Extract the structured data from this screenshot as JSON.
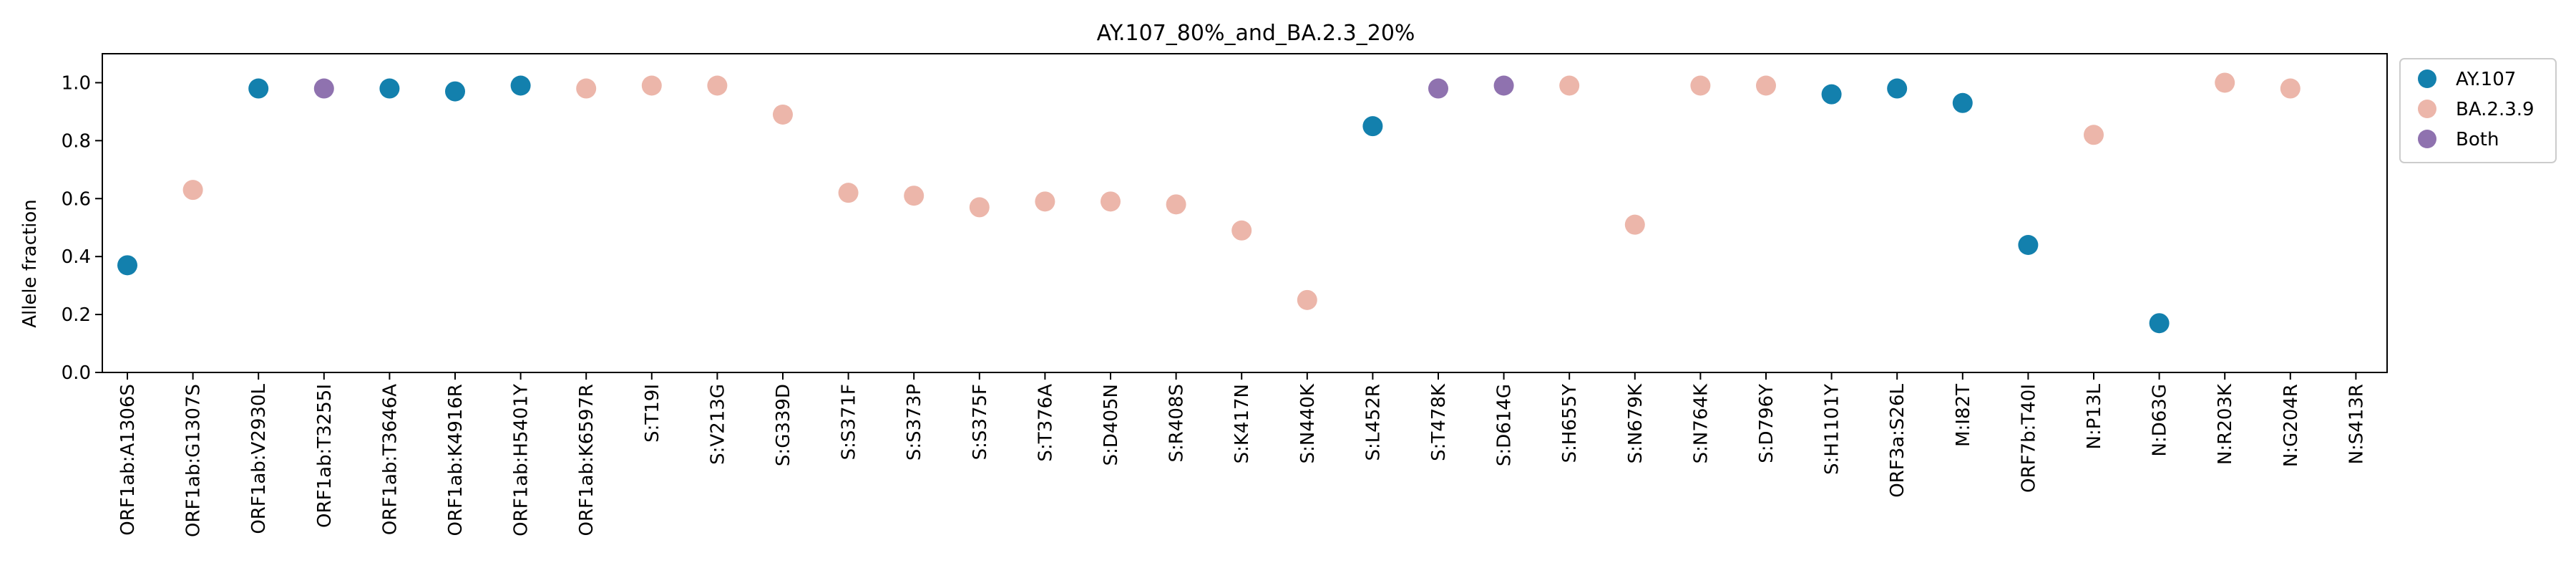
{
  "chart_data": {
    "type": "scatter",
    "title": "AY.107_80%_and_BA.2.3_20%",
    "xlabel": "",
    "ylabel": "Allele fraction",
    "ylim": [
      0.0,
      1.1
    ],
    "yticks": [
      0.0,
      0.2,
      0.4,
      0.6,
      0.8,
      1.0
    ],
    "ytick_labels": [
      "0.0",
      "0.2",
      "0.4",
      "0.6",
      "0.8",
      "1.0"
    ],
    "grid": false,
    "legend_position": "upper right, outside plot",
    "colors": {
      "AY.107": "#1380AD",
      "BA.2.3.9": "#ECB6AA",
      "Both": "#8F72AF"
    },
    "categories": [
      "ORF1ab:A1306S",
      "ORF1ab:G1307S",
      "ORF1ab:V2930L",
      "ORF1ab:T3255I",
      "ORF1ab:T3646A",
      "ORF1ab:K4916R",
      "ORF1ab:H5401Y",
      "ORF1ab:K6597R",
      "S:T19I",
      "S:V213G",
      "S:G339D",
      "S:S371F",
      "S:S373P",
      "S:S375F",
      "S:T376A",
      "S:D405N",
      "S:R408S",
      "S:K417N",
      "S:N440K",
      "S:L452R",
      "S:T478K",
      "S:D614G",
      "S:H655Y",
      "S:N679K",
      "S:N764K",
      "S:D796Y",
      "S:H1101Y",
      "ORF3a:S26L",
      "M:I82T",
      "ORF7b:T40I",
      "N:P13L",
      "N:D63G",
      "N:R203K",
      "N:G204R",
      "N:S413R"
    ],
    "series": [
      {
        "name": "AY.107",
        "points": [
          {
            "x": "ORF1ab:A1306S",
            "y": 0.37
          },
          {
            "x": "ORF1ab:V2930L",
            "y": 0.98
          },
          {
            "x": "ORF1ab:T3646A",
            "y": 0.98
          },
          {
            "x": "ORF1ab:K4916R",
            "y": 0.97
          },
          {
            "x": "ORF1ab:H5401Y",
            "y": 0.99
          },
          {
            "x": "S:L452R",
            "y": 0.85
          },
          {
            "x": "S:H1101Y",
            "y": 0.96
          },
          {
            "x": "ORF3a:S26L",
            "y": 0.98
          },
          {
            "x": "M:I82T",
            "y": 0.93
          },
          {
            "x": "ORF7b:T40I",
            "y": 0.44
          },
          {
            "x": "N:D63G",
            "y": 0.17
          }
        ]
      },
      {
        "name": "BA.2.3.9",
        "points": [
          {
            "x": "ORF1ab:G1307S",
            "y": 0.63
          },
          {
            "x": "ORF1ab:K6597R",
            "y": 0.98
          },
          {
            "x": "S:T19I",
            "y": 0.99
          },
          {
            "x": "S:V213G",
            "y": 0.99
          },
          {
            "x": "S:G339D",
            "y": 0.89
          },
          {
            "x": "S:S371F",
            "y": 0.62
          },
          {
            "x": "S:S373P",
            "y": 0.61
          },
          {
            "x": "S:S375F",
            "y": 0.57
          },
          {
            "x": "S:T376A",
            "y": 0.59
          },
          {
            "x": "S:D405N",
            "y": 0.59
          },
          {
            "x": "S:R408S",
            "y": 0.58
          },
          {
            "x": "S:K417N",
            "y": 0.49
          },
          {
            "x": "S:N440K",
            "y": 0.25
          },
          {
            "x": "S:H655Y",
            "y": 0.99
          },
          {
            "x": "S:N679K",
            "y": 0.51
          },
          {
            "x": "S:N764K",
            "y": 0.99
          },
          {
            "x": "S:D796Y",
            "y": 0.99
          },
          {
            "x": "N:P13L",
            "y": 0.82
          },
          {
            "x": "N:R203K",
            "y": 1.0
          },
          {
            "x": "N:G204R",
            "y": 0.98
          }
        ]
      },
      {
        "name": "Both",
        "points": [
          {
            "x": "ORF1ab:T3255I",
            "y": 0.98
          },
          {
            "x": "S:T478K",
            "y": 0.98
          },
          {
            "x": "S:D614G",
            "y": 0.99
          }
        ]
      }
    ]
  }
}
